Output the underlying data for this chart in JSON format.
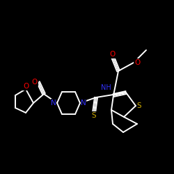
{
  "background_color": "#000000",
  "bond_color": "#ffffff",
  "atom_colors": {
    "N": "#3333ff",
    "O": "#ff0000",
    "S": "#ccaa00",
    "C": "#ffffff"
  },
  "figsize": [
    2.5,
    2.5
  ],
  "dpi": 100
}
